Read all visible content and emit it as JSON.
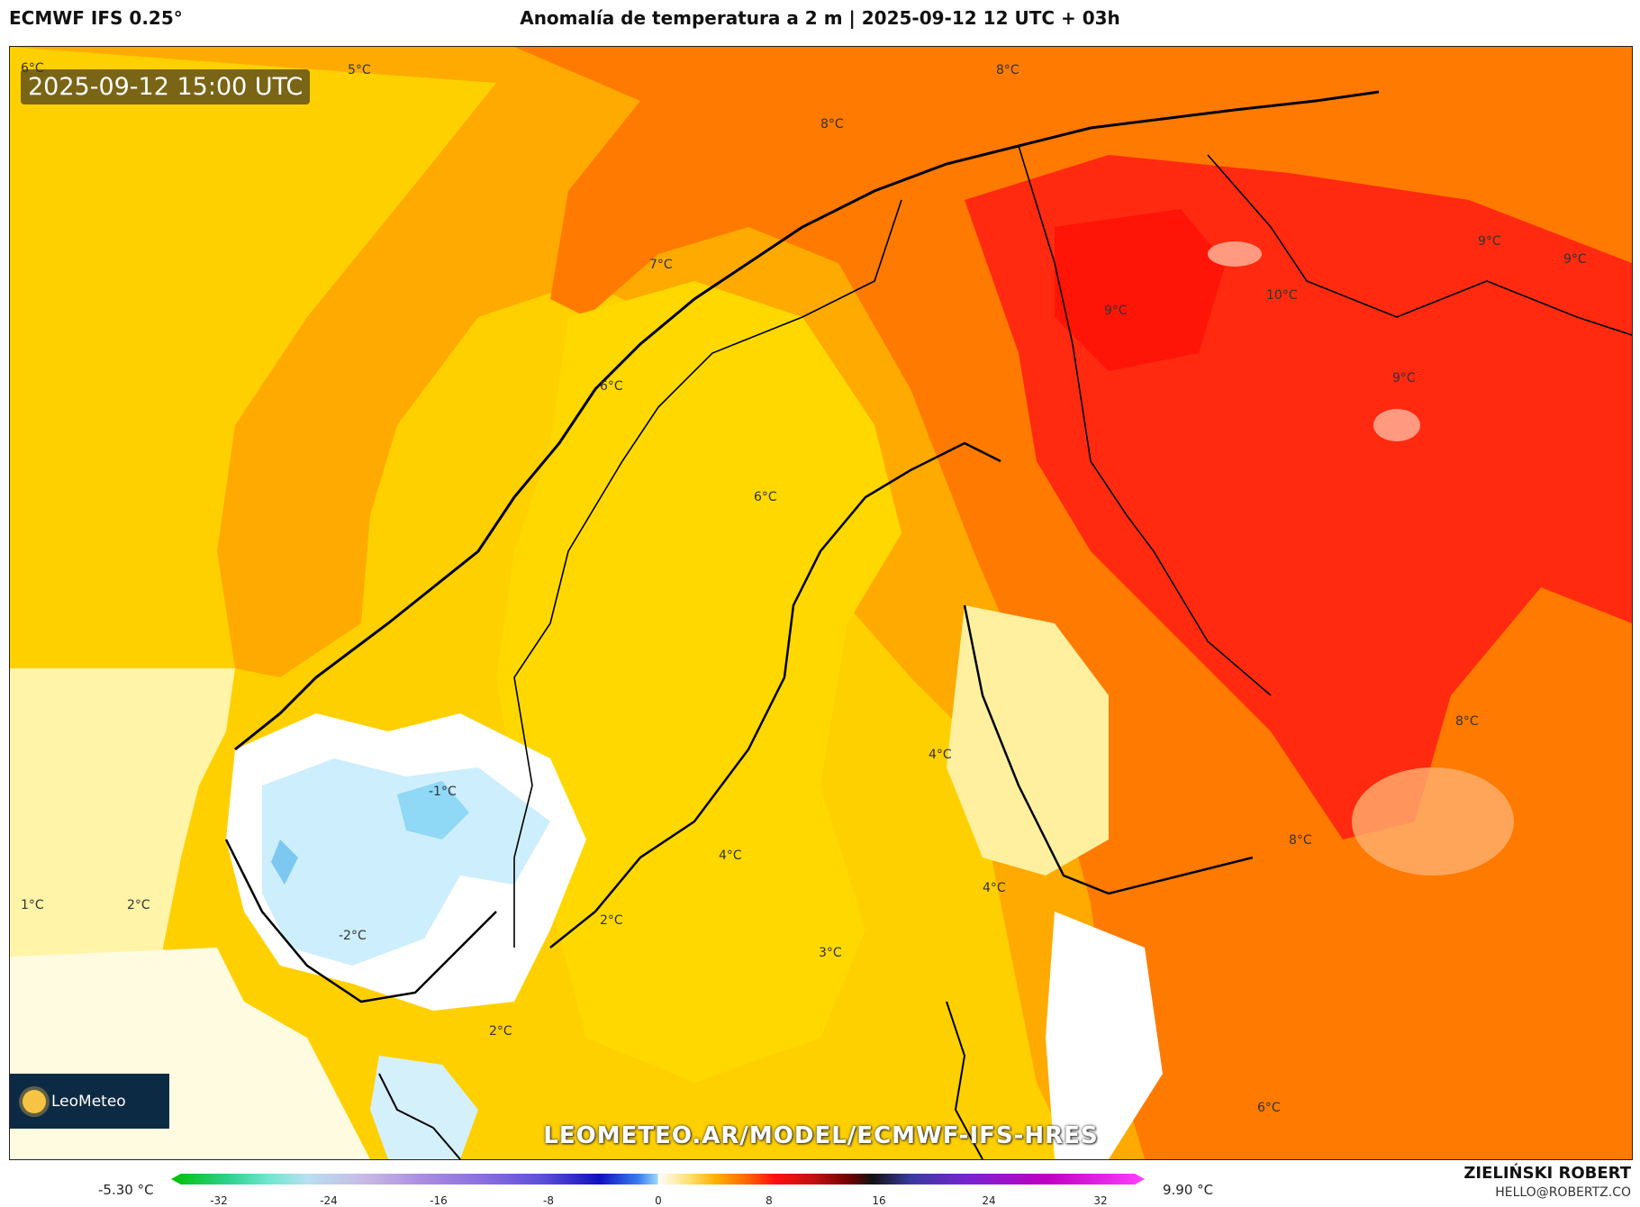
{
  "header": {
    "model": "ECMWF IFS 0.25°",
    "title": "Anomalía de temperatura a 2 m | 2025-09-12 12 UTC + 03h"
  },
  "map": {
    "valid_time": "2025-09-12 15:00 UTC",
    "logo_text": "LeoMeteo",
    "url": "LEOMETEO.AR/MODEL/ECMWF-IFS-HRES",
    "labels": [
      {
        "id": "l6a",
        "text": "6°C"
      },
      {
        "id": "l5a",
        "text": "5°C"
      },
      {
        "id": "l8a",
        "text": "8°C"
      },
      {
        "id": "l8b",
        "text": "8°C"
      },
      {
        "id": "l7a",
        "text": "7°C"
      },
      {
        "id": "l9a",
        "text": "9°C"
      },
      {
        "id": "l9b",
        "text": "9°C"
      },
      {
        "id": "l9c",
        "text": "9°C"
      },
      {
        "id": "l9d",
        "text": "9°C"
      },
      {
        "id": "l10",
        "text": "10°C"
      },
      {
        "id": "l6b",
        "text": "6°C"
      },
      {
        "id": "l6c",
        "text": "6°C"
      },
      {
        "id": "l8c",
        "text": "8°C"
      },
      {
        "id": "l4a",
        "text": "4°C"
      },
      {
        "id": "lm1",
        "text": "-1°C"
      },
      {
        "id": "l4b",
        "text": "4°C"
      },
      {
        "id": "l8d",
        "text": "8°C"
      },
      {
        "id": "l4c",
        "text": "4°C"
      },
      {
        "id": "l1a",
        "text": "1°C"
      },
      {
        "id": "l2a",
        "text": "2°C"
      },
      {
        "id": "l2b",
        "text": "2°C"
      },
      {
        "id": "lm2",
        "text": "-2°C"
      },
      {
        "id": "l3a",
        "text": "3°C"
      },
      {
        "id": "l2c",
        "text": "2°C"
      },
      {
        "id": "l6d",
        "text": "6°C"
      }
    ]
  },
  "colorbar": {
    "min_label": "-5.30 °C",
    "max_label": "9.90 °C",
    "ticks": [
      "-32",
      "-24",
      "-16",
      "-8",
      "0",
      "8",
      "16",
      "24",
      "32"
    ]
  },
  "footer": {
    "author": "ZIELIŃSKI ROBERT",
    "email": "HELLO@ROBERTZ.CO"
  }
}
